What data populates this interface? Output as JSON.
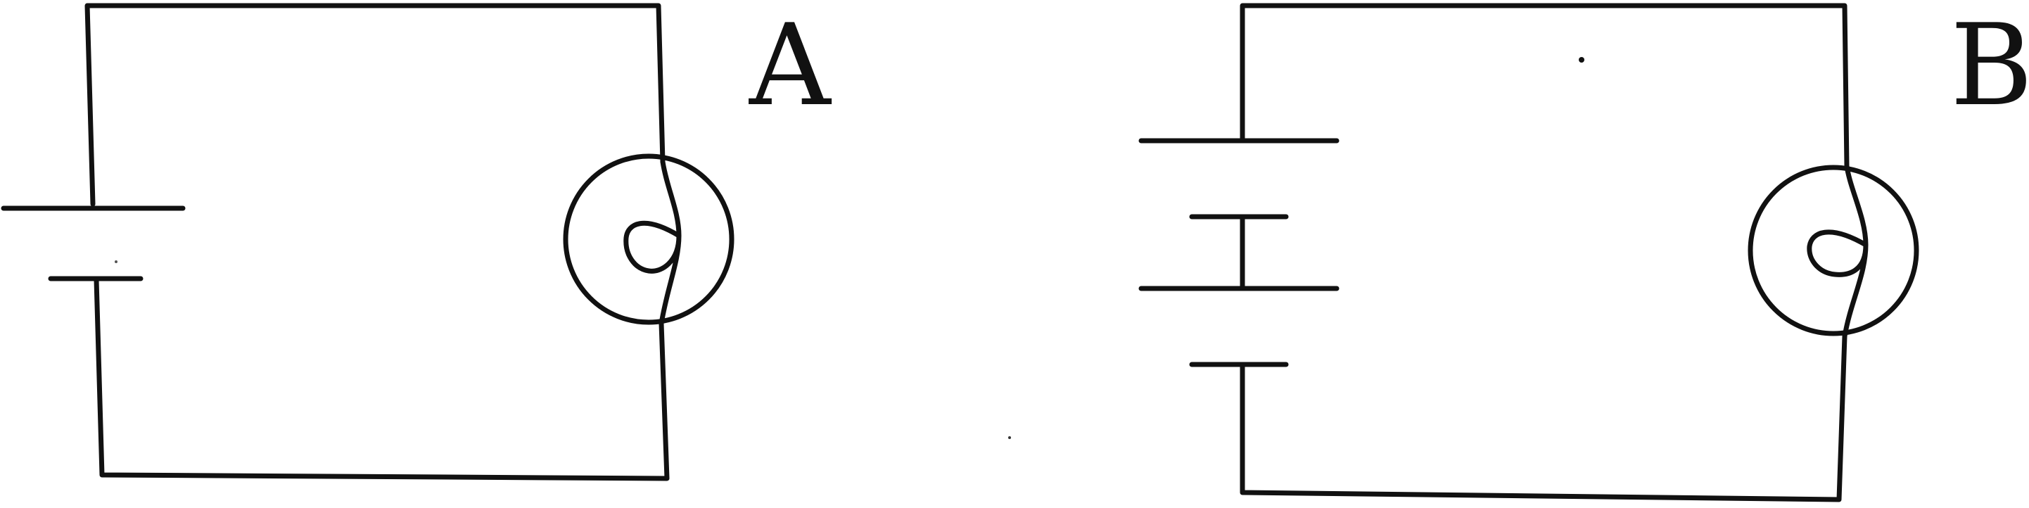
{
  "circuits": [
    {
      "label": "A",
      "cells": 1,
      "bulbs": 1
    },
    {
      "label": "B",
      "cells": 2,
      "bulbs": 1
    }
  ]
}
